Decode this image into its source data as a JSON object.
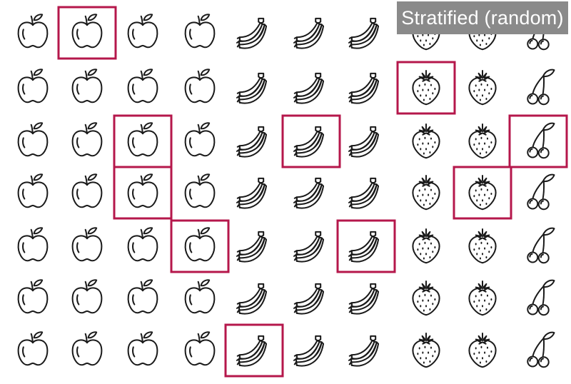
{
  "title": "Stratified (random)",
  "icon_names": [
    "apple-icon",
    "banana-icon",
    "strawberry-icon",
    "cherry-icon"
  ],
  "grid": {
    "rows": 7,
    "columns": [
      "apple",
      "apple",
      "apple",
      "apple",
      "banana",
      "banana",
      "banana",
      "strawberry",
      "strawberry",
      "cherry"
    ]
  },
  "selected_cells": [
    {
      "row": 0,
      "col": 1
    },
    {
      "row": 1,
      "col": 7
    },
    {
      "row": 2,
      "col": 2
    },
    {
      "row": 2,
      "col": 5
    },
    {
      "row": 2,
      "col": 9
    },
    {
      "row": 3,
      "col": 2
    },
    {
      "row": 3,
      "col": 8
    },
    {
      "row": 4,
      "col": 3
    },
    {
      "row": 4,
      "col": 6
    },
    {
      "row": 6,
      "col": 4
    }
  ],
  "colors": {
    "highlight": "#b5174b",
    "title_bg": "#8a8a8a",
    "stroke": "#1a1a1a"
  }
}
